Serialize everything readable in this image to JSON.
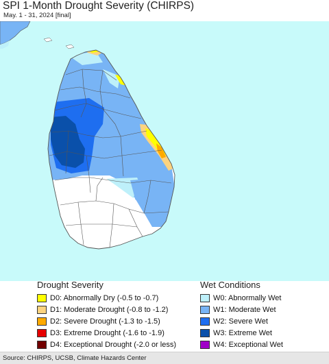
{
  "header": {
    "title": "SPI 1-Month Drought Severity (CHIRPS)",
    "subtitle": "May. 1 - 31, 2024 [final]"
  },
  "colors": {
    "sea": "#c8fafa",
    "land_default": "#ffffff",
    "border": "#555555"
  },
  "legend": {
    "drought": {
      "heading": "Drought Severity",
      "items": [
        {
          "label": "D0: Abnormally Dry (-0.5 to -0.7)",
          "color": "#ffff00"
        },
        {
          "label": "D1: Moderate Drought (-0.8 to -1.2)",
          "color": "#fcd37f"
        },
        {
          "label": "D2: Severe Drought (-1.3 to -1.5)",
          "color": "#ffaa00"
        },
        {
          "label": "D3: Extreme Drought (-1.6 to -1.9)",
          "color": "#e60000"
        },
        {
          "label": "D4: Exceptional Drought (-2.0 or less)",
          "color": "#730000"
        }
      ]
    },
    "wet": {
      "heading": "Wet Conditions",
      "items": [
        {
          "label": "W0: Abnormally Wet",
          "color": "#bef0fa"
        },
        {
          "label": "W1: Moderate Wet",
          "color": "#78b4f5"
        },
        {
          "label": "W2: Severe Wet",
          "color": "#1e6ef0"
        },
        {
          "label": "W3: Extreme Wet",
          "color": "#0a50aa"
        },
        {
          "label": "W4: Exceptional Wet",
          "color": "#a000c8"
        }
      ]
    }
  },
  "footer": {
    "source": "Source: CHIRPS, UCSB, Climate Hazards Center"
  }
}
